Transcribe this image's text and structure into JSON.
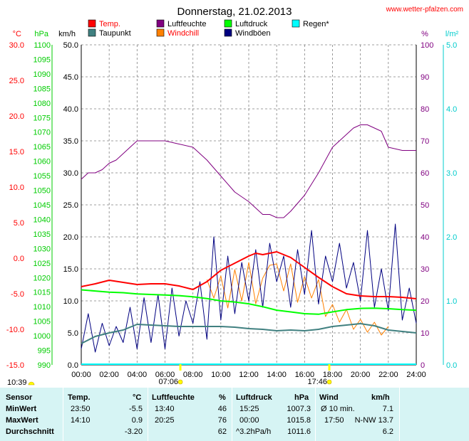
{
  "chart_data": {
    "type": "line",
    "title": "Donnerstag, 21.02.2013",
    "site": "www.wetter-pfalzen.com",
    "x_ticks": [
      "00:00",
      "02:00",
      "04:00",
      "06:00",
      "08:00",
      "10:00",
      "12:00",
      "14:00",
      "16:00",
      "18:00",
      "20:00",
      "22:00",
      "24:00"
    ],
    "axes": {
      "celsius": {
        "label": "°C",
        "min": -15,
        "max": 30,
        "color": "#ff0000",
        "ticks": [
          "30.0",
          "25.0",
          "20.0",
          "15.0",
          "10.0",
          "5.0",
          "0.0",
          "-5.0",
          "-10.0",
          "-15.0"
        ]
      },
      "hpa": {
        "label": "hPa",
        "min": 990,
        "max": 1100,
        "color": "#00cc00",
        "ticks": [
          "1100",
          "1095",
          "1090",
          "1085",
          "1080",
          "1075",
          "1070",
          "1065",
          "1060",
          "1055",
          "1050",
          "1045",
          "1040",
          "1035",
          "1030",
          "1025",
          "1020",
          "1015",
          "1010",
          "1005",
          "1000",
          "995",
          "990"
        ]
      },
      "kmh": {
        "label": "km/h",
        "min": 0,
        "max": 50,
        "color": "#000000",
        "ticks": [
          "50.0",
          "45.0",
          "40.0",
          "35.0",
          "30.0",
          "25.0",
          "20.0",
          "15.0",
          "10.0",
          "5.0",
          "0.0"
        ]
      },
      "percent": {
        "label": "%",
        "min": 0,
        "max": 100,
        "color": "#800080",
        "ticks": [
          "100",
          "90",
          "80",
          "70",
          "60",
          "50",
          "40",
          "30",
          "20",
          "10",
          "0"
        ]
      },
      "lm2": {
        "label": "l/m²",
        "min": 0,
        "max": 5,
        "color": "#00cccc",
        "ticks": [
          "5.0",
          "4.0",
          "3.0",
          "2.0",
          "1.0",
          "0.0"
        ]
      }
    },
    "legend": [
      {
        "name": "Temp.",
        "color": "#ff0000"
      },
      {
        "name": "Taupunkt",
        "color": "#408080"
      },
      {
        "name": "Luftfeuchte",
        "color": "#800080"
      },
      {
        "name": "Windchill",
        "color": "#ff8000"
      },
      {
        "name": "Luftdruck",
        "color": "#00ff00"
      },
      {
        "name": "Windböen",
        "color": "#000080"
      },
      {
        "name": "Regen*",
        "color": "#00ffff"
      }
    ],
    "series": [
      {
        "name": "Temp.",
        "axis": "celsius",
        "color": "#ff0000",
        "x": [
          0,
          1,
          2,
          3,
          4,
          5,
          6,
          7,
          8,
          9,
          10,
          11,
          12,
          12.5,
          13,
          13.5,
          14,
          15,
          16,
          17,
          18,
          19,
          20,
          21,
          22,
          23,
          24
        ],
        "y": [
          -4.0,
          -3.6,
          -3.1,
          -3.4,
          -3.7,
          -3.6,
          -3.6,
          -3.9,
          -4.4,
          -3.3,
          -1.7,
          -0.7,
          0.3,
          0.7,
          0.5,
          0.7,
          0.9,
          0.1,
          -1.3,
          -2.7,
          -4.0,
          -5.0,
          -5.3,
          -5.4,
          -5.4,
          -5.5,
          -5.7
        ]
      },
      {
        "name": "Taupunkt",
        "axis": "celsius",
        "color": "#408080",
        "x": [
          0,
          1,
          2,
          3,
          4,
          5,
          6,
          7,
          8,
          9,
          10,
          11,
          12,
          13,
          14,
          15,
          16,
          17,
          18,
          19,
          20,
          21,
          22,
          23,
          24
        ],
        "y": [
          -12.0,
          -11.0,
          -10.5,
          -10.1,
          -9.3,
          -9.4,
          -9.5,
          -9.6,
          -9.6,
          -9.6,
          -9.6,
          -9.7,
          -9.9,
          -10.0,
          -10.2,
          -10.1,
          -10.2,
          -10.0,
          -9.6,
          -9.4,
          -9.2,
          -9.5,
          -10.1,
          -10.3,
          -10.5
        ]
      },
      {
        "name": "Luftfeuchte",
        "axis": "percent",
        "color": "#800080",
        "x": [
          0,
          0.5,
          1,
          1.5,
          2,
          2.5,
          3,
          3.5,
          4,
          5,
          6,
          7,
          8,
          9,
          10,
          11,
          12,
          12.5,
          13,
          13.5,
          14,
          14.5,
          15,
          16,
          17,
          17.5,
          18,
          19,
          19.5,
          20,
          20.5,
          21,
          21.5,
          22,
          23,
          24
        ],
        "y": [
          58,
          60,
          60,
          61,
          63,
          64,
          66,
          68,
          70,
          70,
          70,
          69,
          68,
          64,
          59,
          54,
          51,
          49,
          47,
          47,
          46,
          46,
          48,
          53,
          60,
          64,
          68,
          72,
          74,
          75,
          75,
          74,
          73,
          68,
          67,
          67
        ]
      },
      {
        "name": "Luftdruck",
        "axis": "hpa",
        "color": "#00ff00",
        "x": [
          0,
          1,
          2,
          3,
          4,
          5,
          6,
          7,
          8,
          9,
          10,
          11,
          12,
          13,
          14,
          15,
          16,
          17,
          18,
          19,
          20,
          21,
          22,
          23,
          24
        ],
        "y": [
          1015.8,
          1015.4,
          1015.0,
          1014.8,
          1014.4,
          1014.2,
          1014.0,
          1013.8,
          1013.4,
          1012.8,
          1012.0,
          1011.6,
          1011.0,
          1010.0,
          1008.8,
          1008.2,
          1007.6,
          1007.4,
          1008.2,
          1009.0,
          1009.4,
          1009.5,
          1009.3,
          1009.0,
          1008.8
        ]
      },
      {
        "name": "Windchill",
        "axis": "celsius",
        "color": "#ff8000",
        "x": [
          9,
          9.5,
          10,
          10.5,
          11,
          11.5,
          12,
          12.5,
          13,
          13.5,
          14,
          14.5,
          15,
          15.5,
          16,
          16.5,
          17,
          17.5,
          18,
          18.5,
          19,
          19.5,
          20,
          20.5,
          21,
          21.5,
          22
        ],
        "y": [
          -3.0,
          -5.6,
          -2.5,
          -7.0,
          -1.6,
          -6.0,
          -0.6,
          -6.4,
          -2.8,
          -1.0,
          -0.8,
          -4.6,
          -0.8,
          -6.2,
          -2.6,
          -5.6,
          -3.0,
          -8.2,
          -6.5,
          -9.0,
          -7.2,
          -10.0,
          -8.6,
          -10.4,
          -9.0,
          -10.8,
          -9.6
        ]
      },
      {
        "name": "Windböen",
        "axis": "kmh",
        "color": "#000080",
        "x": [
          0,
          0.5,
          1,
          1.5,
          2,
          2.5,
          3,
          3.5,
          4,
          4.5,
          5,
          5.5,
          6,
          6.5,
          7,
          7.5,
          8,
          8.5,
          9,
          9.5,
          10,
          10.5,
          11,
          11.5,
          12,
          12.5,
          13,
          13.5,
          14,
          14.5,
          15,
          15.5,
          16,
          16.5,
          17,
          17.5,
          18,
          18.5,
          19,
          19.5,
          20,
          20.5,
          21,
          21.5,
          22,
          22.5,
          23,
          23.5,
          24
        ],
        "y": [
          2.5,
          8.0,
          2.0,
          6.5,
          3.0,
          6.0,
          3.5,
          9.0,
          2.5,
          10.5,
          3.5,
          11.0,
          2.5,
          12.0,
          4.5,
          10.0,
          6.5,
          13.0,
          4.0,
          20.0,
          7.0,
          17.0,
          8.0,
          16.0,
          10.0,
          18.0,
          9.0,
          19.0,
          13.0,
          17.0,
          9.0,
          18.0,
          11.0,
          21.0,
          9.5,
          17.0,
          13.0,
          19.0,
          12.0,
          16.0,
          10.0,
          21.0,
          9.0,
          15.0,
          8.5,
          22.0,
          7.0,
          12.0,
          6.5
        ]
      }
    ],
    "markers": [
      {
        "label": "10:39",
        "hour": 0,
        "where": "below-axis"
      },
      {
        "label": "07:06",
        "hour": 7.1,
        "where": "axis"
      },
      {
        "label": "17:46",
        "hour": 17.77,
        "where": "axis"
      }
    ]
  },
  "table": {
    "col_sensor": "Sensor",
    "col_temp": "Temp.",
    "col_temp_unit": "°C",
    "col_hum": "Luftfeuchte",
    "col_hum_unit": "%",
    "col_press": "Luftdruck",
    "col_press_unit": "hPa",
    "col_wind": "Wind",
    "col_wind_unit": "km/h",
    "min_label": "MinWert",
    "min_temp_time": "23:50",
    "min_temp": "-5.5",
    "min_hum_time": "13:40",
    "min_hum": "46",
    "min_press_time": "15:25",
    "min_press": "1007.3",
    "min_wind_label": "Ø 10 min.",
    "min_wind": "7.1",
    "max_label": "MaxWert",
    "max_temp_time": "14:10",
    "max_temp": "0.9",
    "max_hum_time": "20:25",
    "max_hum": "76",
    "max_press_time": "00:00",
    "max_press": "1015.8",
    "max_wind_time": "17:50",
    "max_wind": "N-NW 13.7",
    "avg_label": "Durchschnitt",
    "avg_temp": "-3.20",
    "avg_hum": "62",
    "avg_press_trend": "^3.2hPa/h",
    "avg_press": "1011.6",
    "avg_wind": "6.2"
  }
}
